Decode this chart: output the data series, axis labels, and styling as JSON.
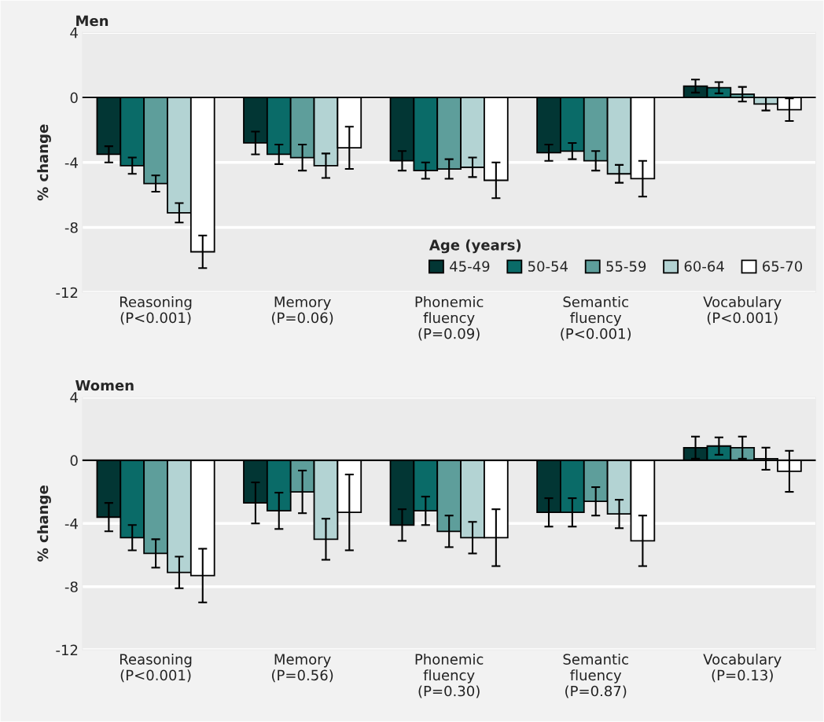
{
  "chart_data": [
    {
      "type": "bar",
      "title": "Men",
      "ylabel": "% change",
      "categories": [
        "Reasoning\n(P<0.001)",
        "Memory\n(P=0.06)",
        "Phonemic\nfluency\n(P=0.09)",
        "Semantic\nfluency\n(P<0.001)",
        "Vocabulary\n(P<0.001)"
      ],
      "ylim": [
        -12,
        4
      ],
      "yticks": [
        -12,
        -8,
        -4,
        0,
        4
      ],
      "grid": "y",
      "legend": "bottom right",
      "legend_title": "Age (years)",
      "ref_lines": [
        {
          "axis": "y",
          "value": 0,
          "color": "#000000"
        }
      ],
      "series": [
        {
          "name": "45-49",
          "color": "#023634",
          "values": [
            -3.5,
            -2.8,
            -3.9,
            -3.4,
            0.7
          ],
          "errors": [
            0.5,
            0.7,
            0.6,
            0.5,
            0.4
          ]
        },
        {
          "name": "50-54",
          "color": "#0a6b68",
          "values": [
            -4.2,
            -3.5,
            -4.5,
            -3.3,
            0.6
          ],
          "errors": [
            0.5,
            0.6,
            0.5,
            0.5,
            0.35
          ]
        },
        {
          "name": "55-59",
          "color": "#5e9e9b",
          "values": [
            -5.3,
            -3.7,
            -4.4,
            -3.9,
            0.2
          ],
          "errors": [
            0.5,
            0.8,
            0.6,
            0.6,
            0.45
          ]
        },
        {
          "name": "60-64",
          "color": "#b3d3d3",
          "values": [
            -7.1,
            -4.2,
            -4.3,
            -4.7,
            -0.4
          ],
          "errors": [
            0.6,
            0.75,
            0.6,
            0.55,
            0.4
          ]
        },
        {
          "name": "65-70",
          "color": "#ffffff",
          "values": [
            -9.5,
            -3.1,
            -5.1,
            -5.0,
            -0.75
          ],
          "errors": [
            1.0,
            1.3,
            1.1,
            1.1,
            0.7
          ]
        }
      ]
    },
    {
      "type": "bar",
      "title": "Women",
      "ylabel": "% change",
      "categories": [
        "Reasoning\n(P<0.001)",
        "Memory\n(P=0.56)",
        "Phonemic\nfluency\n(P=0.30)",
        "Semantic\nfluency\n(P=0.87)",
        "Vocabulary\n(P=0.13)"
      ],
      "ylim": [
        -12,
        4
      ],
      "yticks": [
        -12,
        -8,
        -4,
        0,
        4
      ],
      "grid": "y",
      "ref_lines": [
        {
          "axis": "y",
          "value": 0,
          "color": "#000000"
        }
      ],
      "series": [
        {
          "color": "#023634",
          "values": [
            -3.6,
            -2.7,
            -4.1,
            -3.3,
            0.8
          ],
          "errors": [
            0.9,
            1.3,
            1.0,
            0.9,
            0.7
          ]
        },
        {
          "color": "#0a6b68",
          "values": [
            -4.9,
            -3.2,
            -3.2,
            -3.3,
            0.9
          ],
          "errors": [
            0.8,
            1.15,
            0.9,
            0.9,
            0.55
          ]
        },
        {
          "color": "#5e9e9b",
          "values": [
            -5.9,
            -2.0,
            -4.5,
            -2.6,
            0.8
          ],
          "errors": [
            0.9,
            1.35,
            1.0,
            0.9,
            0.7
          ]
        },
        {
          "color": "#b3d3d3",
          "values": [
            -7.1,
            -5.0,
            -4.9,
            -3.4,
            0.1
          ],
          "errors": [
            1.0,
            1.3,
            1.0,
            0.9,
            0.7
          ]
        },
        {
          "color": "#ffffff",
          "values": [
            -7.3,
            -3.3,
            -4.9,
            -5.1,
            -0.7
          ],
          "errors": [
            1.7,
            2.4,
            1.8,
            1.6,
            1.3
          ]
        }
      ]
    }
  ]
}
